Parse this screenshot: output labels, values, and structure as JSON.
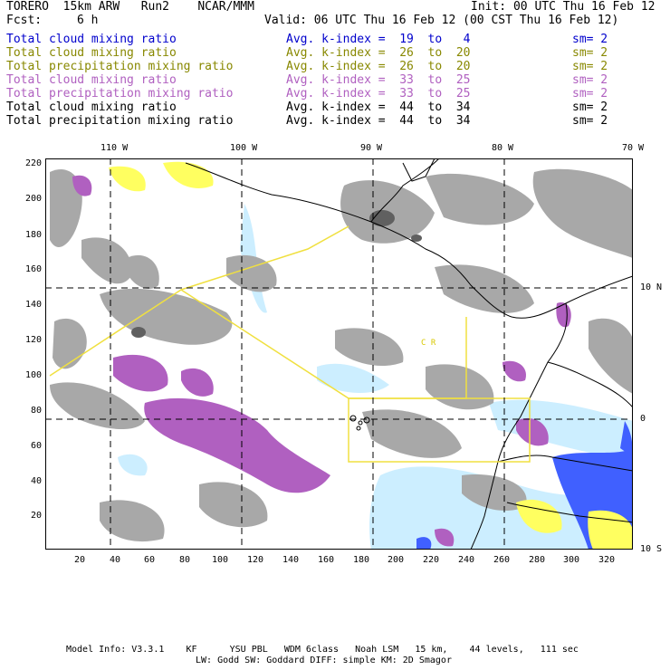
{
  "header": {
    "model": "TORERO  15km ARW   Run2    NCAR/MMM",
    "init": "Init: 00 UTC Thu 16 Feb 12",
    "fcst_label": "Fcst:",
    "fcst_value": "6 h",
    "valid": "Valid: 06 UTC Thu 16 Feb 12 (00 CST Thu 16 Feb 12)"
  },
  "legend": [
    {
      "field": "Total cloud mixing ratio",
      "kindex": "Avg. k-index =  19  to   4",
      "sm": "sm= 2",
      "color": "#0000cc"
    },
    {
      "field": "Total cloud mixing ratio",
      "kindex": "Avg. k-index =  26  to  20",
      "sm": "sm= 2",
      "color": "#888800"
    },
    {
      "field": "Total precipitation mixing ratio",
      "kindex": "Avg. k-index =  26  to  20",
      "sm": "sm= 2",
      "color": "#888800"
    },
    {
      "field": "Total cloud mixing ratio",
      "kindex": "Avg. k-index =  33  to  25",
      "sm": "sm= 2",
      "color": "#b060c0"
    },
    {
      "field": "Total precipitation mixing ratio",
      "kindex": "Avg. k-index =  33  to  25",
      "sm": "sm= 2",
      "color": "#b060c0"
    },
    {
      "field": "Total cloud mixing ratio",
      "kindex": "Avg. k-index =  44  to  34",
      "sm": "sm= 2",
      "color": "#000000"
    },
    {
      "field": "Total precipitation mixing ratio",
      "kindex": "Avg. k-index =  44  to  34",
      "sm": "sm= 2",
      "color": "#000000"
    }
  ],
  "map": {
    "lon_labels": [
      "110 W",
      "100 W",
      "90 W",
      "80 W",
      "70 W"
    ],
    "lat_labels": [
      "10 N",
      "0",
      "10 S"
    ],
    "y_ticks": [
      "220",
      "200",
      "180",
      "160",
      "140",
      "120",
      "100",
      "80",
      "60",
      "40",
      "20"
    ],
    "x_ticks": [
      "20",
      "40",
      "60",
      "80",
      "100",
      "120",
      "140",
      "160",
      "180",
      "200",
      "220",
      "240",
      "260",
      "280",
      "300",
      "320"
    ],
    "region_labels": [
      "C R"
    ],
    "colors": {
      "gray": "#a8a8a8",
      "dark_gray": "#606060",
      "purple": "#b060c0",
      "yellow": "#ffff60",
      "light_blue": "#cceeff",
      "blue": "#4060ff",
      "domain_outline": "#f0e040"
    }
  },
  "footer": {
    "line1": "Model Info: V3.3.1    KF      YSU PBL   WDM 6class   Noah LSM   15 km,    44 levels,   111 sec",
    "line2": "LW: Godd SW: Goddard DIFF: simple KM: 2D Smagor"
  }
}
